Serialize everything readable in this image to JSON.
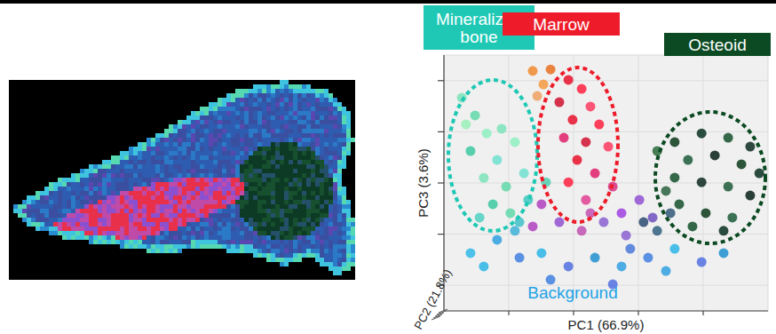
{
  "chart_data": {
    "type": "scatter",
    "x_label": "PC1 (66.9%)",
    "y_label": "PC3 (3.6%)",
    "z_label": "PC2 (21.8%)",
    "xlim": [
      0,
      100
    ],
    "ylim": [
      0,
      100
    ],
    "xticks": [
      20,
      40,
      60,
      80
    ],
    "yticks": [
      10,
      30,
      50,
      70,
      90
    ],
    "grid": true,
    "tick_labels": false,
    "marker": "circle",
    "annotations": [
      {
        "text": "Mineralized bone",
        "color": "#1ec8b4"
      },
      {
        "text": "Marrow",
        "color": "#ee1c2a"
      },
      {
        "text": "Osteoid",
        "color": "#0b4a22"
      },
      {
        "text": "Background",
        "color": "#1fa3e6"
      }
    ],
    "x": [
      5.5,
      9.6,
      13.2,
      8.2,
      16.4,
      12.3,
      19.2,
      15.1,
      21.9,
      24.7,
      6.8,
      17.8,
      11.0,
      20.5,
      27.4,
      30.7,
      32.9,
      28.8,
      38.4,
      42.5,
      35.6,
      45.2,
      39.7,
      47.9,
      37.0,
      43.8,
      50.7,
      41.1,
      46.6,
      38.4,
      52.1,
      43.8,
      71.2,
      79.5,
      87.7,
      94.5,
      75.3,
      83.6,
      91.8,
      97.3,
      71.2,
      79.5,
      87.7,
      94.5,
      72.6,
      80.8,
      89.0,
      68.5,
      86.3,
      76.7,
      65.8,
      30.1,
      35.6,
      42.5,
      49.3,
      54.8,
      60.3,
      27.4,
      45.2,
      56.2,
      64.4,
      16.4,
      23.3,
      30.1,
      38.4,
      46.6,
      54.8,
      63.0,
      71.2,
      79.5,
      86.3,
      12.3,
      32.9,
      52.1,
      68.5,
      21.9,
      8.2,
      57.5,
      26.0,
      31.5,
      23.3,
      65.8,
      61.6,
      69.9
    ],
    "values": [
      83.3,
      76.4,
      69.4,
      62.5,
      59.0,
      52.0,
      48.6,
      41.7,
      66.0,
      53.8,
      72.9,
      71.2,
      36.5,
      38.2,
      93.8,
      88.5,
      94.4,
      84.0,
      90.3,
      86.8,
      81.6,
      79.9,
      74.7,
      72.9,
      67.7,
      66.0,
      64.2,
      59.0,
      53.8,
      50.3,
      48.6,
      43.4,
      66.0,
      69.4,
      67.7,
      64.2,
      59.0,
      60.8,
      57.3,
      53.8,
      52.1,
      50.3,
      48.6,
      45.1,
      41.7,
      38.2,
      36.5,
      46.9,
      31.3,
      33.0,
      62.5,
      41.7,
      34.7,
      31.3,
      34.7,
      38.2,
      43.4,
      33.0,
      38.2,
      29.5,
      36.5,
      27.8,
      20.8,
      22.6,
      17.4,
      20.8,
      17.4,
      20.8,
      24.3,
      19.1,
      22.6,
      17.4,
      12.2,
      10.4,
      15.6,
      31.3,
      22.6,
      24.3,
      43.4,
      50.3,
      34.7,
      31.3,
      34.7,
      38.2
    ],
    "colors": [
      "#7de3b8",
      "#5fd8a8",
      "#8ef0c0",
      "#3cc9a0",
      "#6fe0d0",
      "#7de3b8",
      "#5fd8a8",
      "#3cc9a0",
      "#8ef0c0",
      "#6fe0d0",
      "#9af0b8",
      "#7de3b8",
      "#4fd0c0",
      "#5fd8a8",
      "#f08a30",
      "#f59a40",
      "#e87020",
      "#f0a060",
      "#e8102a",
      "#ff2040",
      "#d01030",
      "#ff3a60",
      "#e8102a",
      "#ff2040",
      "#e0206a",
      "#d01030",
      "#ff3a60",
      "#e8102a",
      "#e0206a",
      "#ff2040",
      "#d83080",
      "#e04090",
      "#0a3a1a",
      "#083020",
      "#14502a",
      "#0c2a20",
      "#1d5a3a",
      "#062018",
      "#0a3a1a",
      "#083020",
      "#14502a",
      "#0c2a20",
      "#1d5a3a",
      "#062018",
      "#14502a",
      "#0a3a1a",
      "#1d5a3a",
      "#2a6040",
      "#083020",
      "#14502a",
      "#2a6a3a",
      "#b040c0",
      "#9050d0",
      "#c050b0",
      "#8a60d0",
      "#a040e0",
      "#9050d0",
      "#b040c0",
      "#c050b0",
      "#8a60d0",
      "#7050c0",
      "#30a0e0",
      "#4080e0",
      "#2bb5e8",
      "#5070e0",
      "#2090d0",
      "#30a0e0",
      "#4080e0",
      "#2bb5e8",
      "#5070e0",
      "#2090d0",
      "#2bb5e8",
      "#4080e0",
      "#5070e0",
      "#30a0e0",
      "#40b0d8",
      "#30b8e8",
      "#4a78d8",
      "#40c8c0",
      "#50d0b0",
      "#40c0c8",
      "#306080",
      "#2a4a70",
      "#305878"
    ]
  }
}
